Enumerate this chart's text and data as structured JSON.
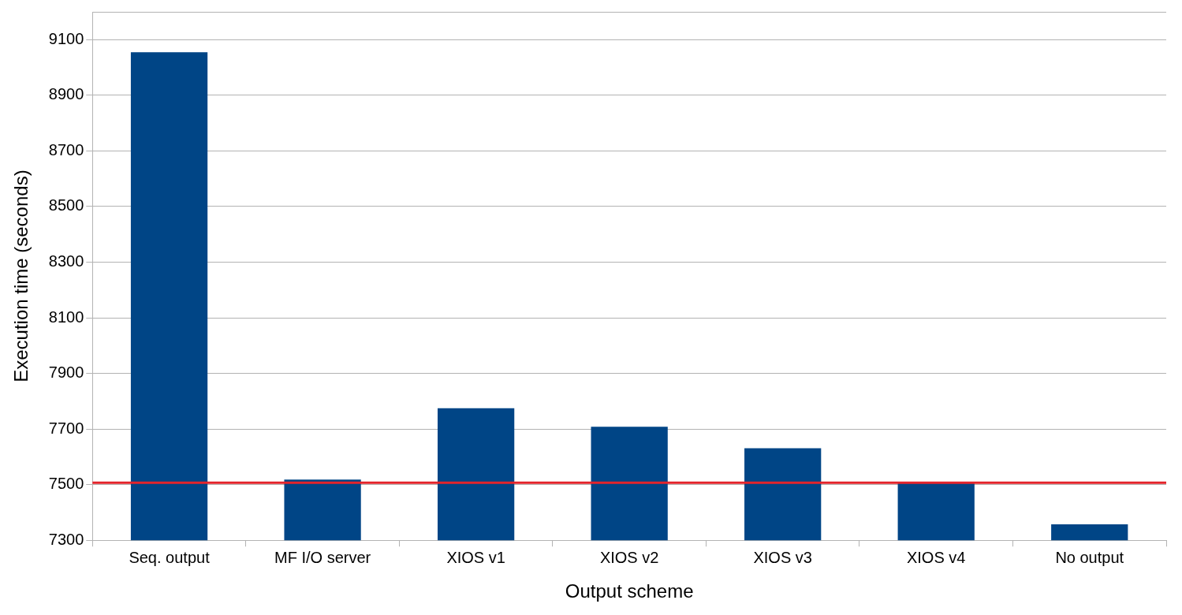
{
  "chart_data": {
    "type": "bar",
    "xlabel": "Output scheme",
    "ylabel": "Execution time (seconds)",
    "categories": [
      "Seq. output",
      "MF I/O server",
      "XIOS v1",
      "XIOS v2",
      "XIOS v3",
      "XIOS v4",
      "No output"
    ],
    "values": [
      9055,
      7518,
      7775,
      7708,
      7631,
      7505,
      7357
    ],
    "color": "#004586",
    "ylim": [
      7300,
      9200
    ],
    "yticks": [
      7300,
      7500,
      7700,
      7900,
      8100,
      8300,
      8500,
      8700,
      8900,
      9100
    ],
    "grid": "y",
    "ref_lines": [
      {
        "axis": "y",
        "value": 7507,
        "color": "#e3242b"
      }
    ]
  }
}
